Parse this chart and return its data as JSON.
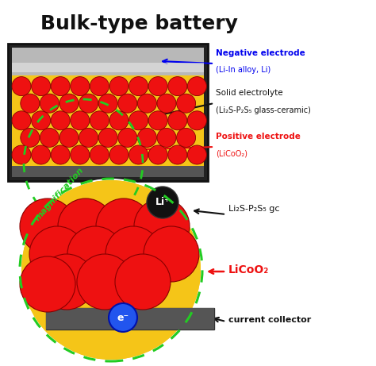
{
  "title": "Bulk-type battery",
  "title_fontsize": 18,
  "title_fontweight": "bold",
  "bg_color": "#ffffff",
  "colors": {
    "blue_text": "#0000ee",
    "red_text": "#ee1111",
    "black_text": "#111111",
    "green_text": "#22cc22",
    "arrow_blue": "#3355ee",
    "arrow_black": "#111111",
    "red_circle": "#ee1111",
    "yellow_circle": "#f5c518",
    "gray_dark": "#444444",
    "gray_light": "#aaaaaa",
    "green_dashed": "#22cc22"
  },
  "labels": {
    "neg_electrode_line1": "Negative electrode",
    "neg_electrode_line2": "(Li-In alloy, Li)",
    "solid_electrolyte_line1": "Solid electrolyte",
    "solid_electrolyte_line2": "(Li₂S-P₂S₅ glass-ceramic)",
    "pos_electrode_line1": "Positive electrode",
    "pos_electrode_line2": "(LiCoO₂)",
    "li2s_p2s5": "Li₂S-P₂S₅ gc",
    "licoo2": "LiCoO₂",
    "current_collector": "current collector",
    "magnification": "magnification",
    "li_plus": "Li⁺",
    "electron": "e⁻"
  }
}
